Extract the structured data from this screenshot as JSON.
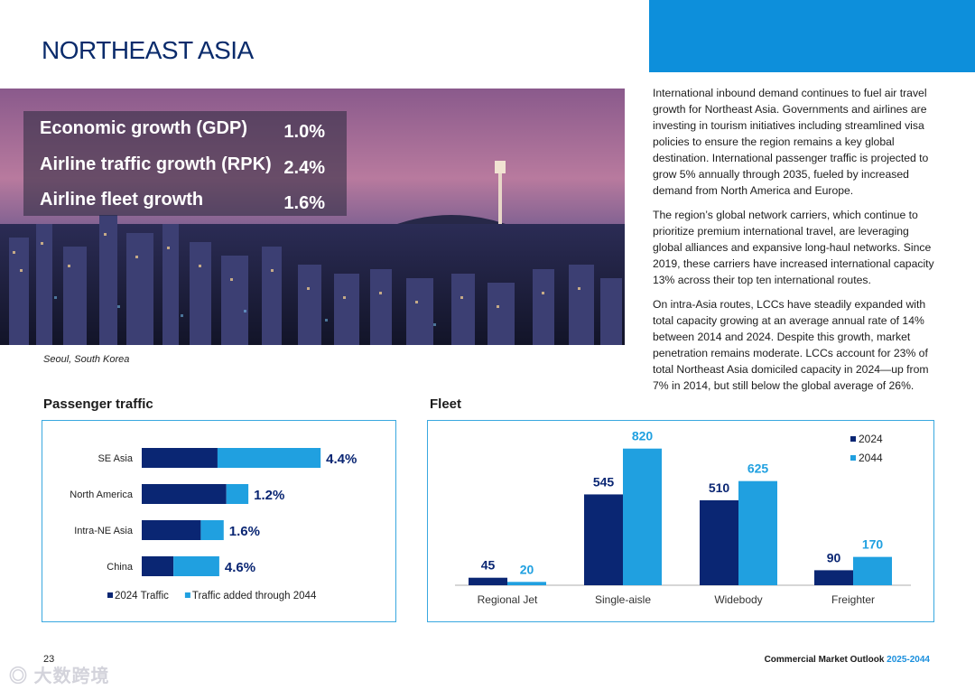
{
  "page": {
    "title": "NORTHEAST ASIA",
    "photo_caption": "Seoul, South Korea",
    "page_number": "23",
    "brand": "Commercial Market Outlook",
    "brand_years": "2025-2044",
    "accent_color": "#0d8fdb"
  },
  "stats": [
    {
      "label": "Economic growth (GDP)",
      "value": "1.0%"
    },
    {
      "label": "Airline traffic growth (RPK)",
      "value": "2.4%"
    },
    {
      "label": "Airline fleet growth",
      "value": "1.6%"
    }
  ],
  "body": {
    "p1": "International inbound demand continues to fuel air travel growth for Northeast Asia. Governments and airlines are investing in tourism initiatives including streamlined visa policies to ensure the region remains a key global destination. International passenger traffic is projected to grow 5% annually through 2035, fueled by increased demand from North America and Europe.",
    "p2": "The region’s global network carriers, which continue to prioritize premium international travel, are leveraging global alliances and expansive long-haul networks. Since 2019, these carriers have increased international capacity 13% across their top ten international routes.",
    "p3": "On intra-Asia routes, LCCs have steadily expanded with total capacity growing at an average annual rate of 14% between 2014 and 2024. Despite this growth, market penetration remains moderate. LCCs account for 23% of total Northeast Asia domiciled capacity in 2024—up from 7% in 2014, but still below the global average of 26%."
  },
  "chart_data": [
    {
      "type": "bar",
      "orientation": "horizontal",
      "stacked": true,
      "title": "Passenger traffic",
      "categories": [
        "SE Asia",
        "North America",
        "Intra-NE Asia",
        "China"
      ],
      "series": [
        {
          "name": "2024 Traffic",
          "color": "#0a2673",
          "values": [
            86,
            96,
            67,
            36
          ]
        },
        {
          "name": "Traffic added through 2044",
          "color": "#20a0e0",
          "values": [
            117,
            25,
            26,
            52
          ]
        }
      ],
      "data_labels": [
        "4.4%",
        "1.2%",
        "1.6%",
        "4.6%"
      ],
      "xlim": [
        0,
        210
      ],
      "legend": "bottom"
    },
    {
      "type": "bar",
      "title": "Fleet",
      "categories": [
        "Regional Jet",
        "Single-aisle",
        "Widebody",
        "Freighter"
      ],
      "series": [
        {
          "name": "2024",
          "color": "#0a2673",
          "values": [
            45,
            545,
            510,
            90
          ]
        },
        {
          "name": "2044",
          "color": "#20a0e0",
          "values": [
            20,
            820,
            625,
            170
          ]
        }
      ],
      "ylim": [
        0,
        840
      ],
      "legend": "top-right"
    }
  ]
}
